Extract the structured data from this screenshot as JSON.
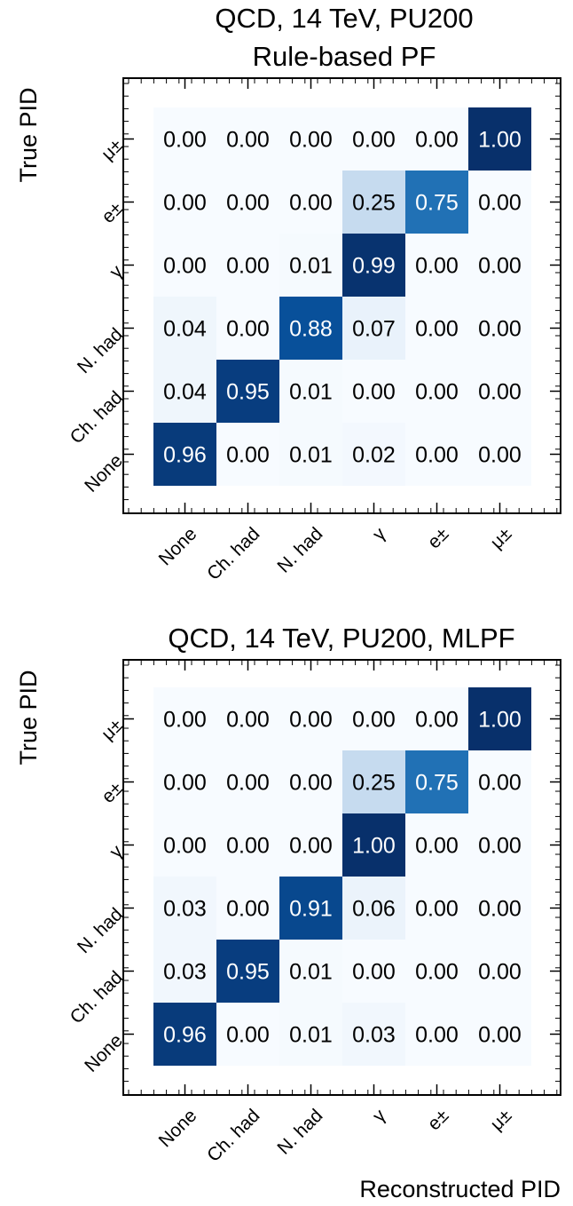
{
  "chart_data": [
    {
      "type": "heatmap",
      "title": "QCD, 14 TeV, PU200",
      "subtitle": "Rule-based PF",
      "xlabel": "",
      "ylabel": "True PID",
      "x_categories": [
        "None",
        "Ch. had",
        "N. had",
        "γ",
        "e±",
        "μ±"
      ],
      "y_categories": [
        "None",
        "Ch. had",
        "N. had",
        "γ",
        "e±",
        "μ±"
      ],
      "matrix": [
        [
          0.96,
          0.0,
          0.01,
          0.02,
          0.0,
          0.0
        ],
        [
          0.04,
          0.95,
          0.01,
          0.0,
          0.0,
          0.0
        ],
        [
          0.04,
          0.0,
          0.88,
          0.07,
          0.0,
          0.0
        ],
        [
          0.0,
          0.0,
          0.01,
          0.99,
          0.0,
          0.0
        ],
        [
          0.0,
          0.0,
          0.0,
          0.25,
          0.75,
          0.0
        ],
        [
          0.0,
          0.0,
          0.0,
          0.0,
          0.0,
          1.0
        ]
      ],
      "value_range": [
        0,
        1
      ],
      "colormap": "Blues",
      "colors": {
        "low": "#f7fbff",
        "mid": "#6baed6",
        "high": "#08306b"
      }
    },
    {
      "type": "heatmap",
      "title": "QCD, 14 TeV, PU200, MLPF",
      "subtitle": "",
      "xlabel": "Reconstructed PID",
      "ylabel": "True PID",
      "x_categories": [
        "None",
        "Ch. had",
        "N. had",
        "γ",
        "e±",
        "μ±"
      ],
      "y_categories": [
        "None",
        "Ch. had",
        "N. had",
        "γ",
        "e±",
        "μ±"
      ],
      "matrix": [
        [
          0.96,
          0.0,
          0.01,
          0.03,
          0.0,
          0.0
        ],
        [
          0.03,
          0.95,
          0.01,
          0.0,
          0.0,
          0.0
        ],
        [
          0.03,
          0.0,
          0.91,
          0.06,
          0.0,
          0.0
        ],
        [
          0.0,
          0.0,
          0.0,
          1.0,
          0.0,
          0.0
        ],
        [
          0.0,
          0.0,
          0.0,
          0.25,
          0.75,
          0.0
        ],
        [
          0.0,
          0.0,
          0.0,
          0.0,
          0.0,
          1.0
        ]
      ],
      "value_range": [
        0,
        1
      ],
      "colormap": "Blues",
      "colors": {
        "low": "#f7fbff",
        "mid": "#6baed6",
        "high": "#08306b"
      }
    }
  ]
}
